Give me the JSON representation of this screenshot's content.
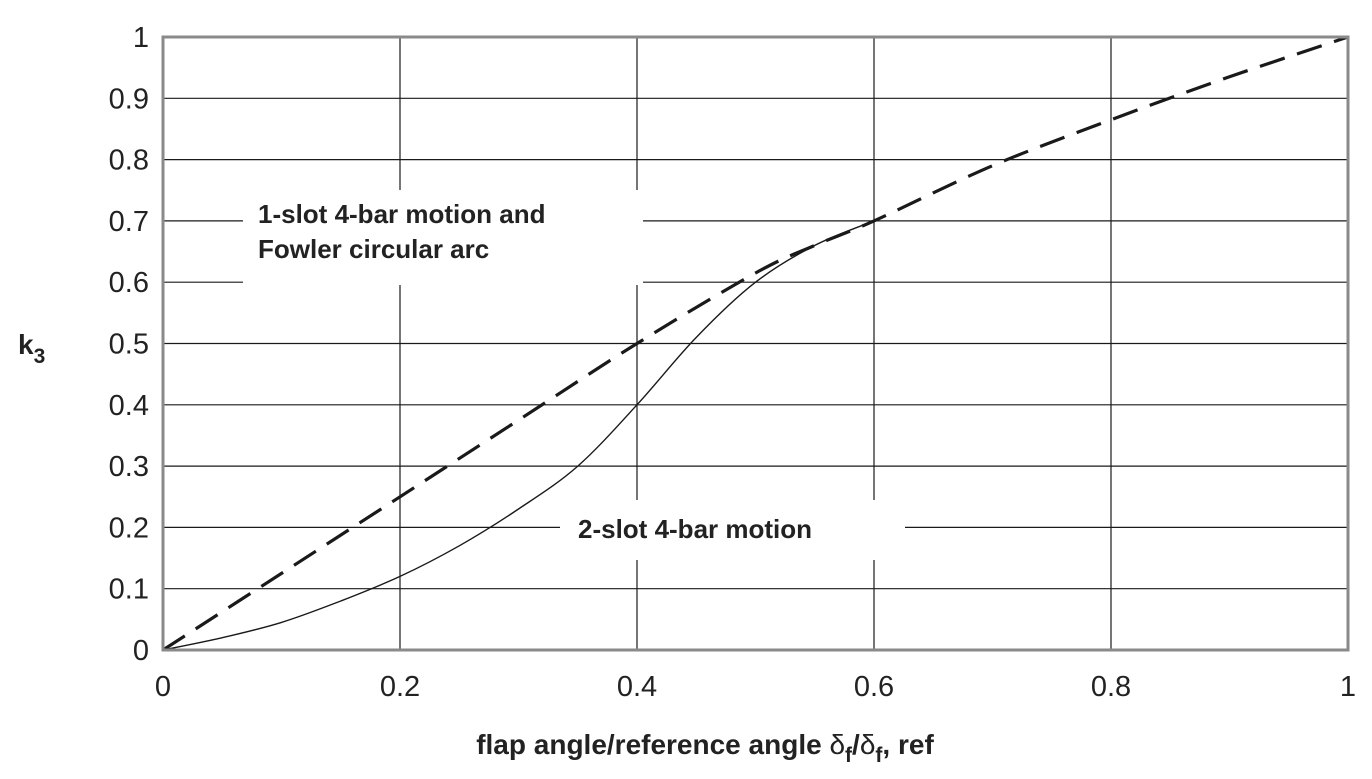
{
  "chart_data": {
    "type": "line",
    "xlabel": "flap angle/reference angle δf/δf, ref",
    "xlabel_parts": {
      "main": "flap angle/reference angle ",
      "sym1": "δ",
      "sub1": "f",
      "slash": "/",
      "sym2": "δ",
      "sub2": "f",
      "tail": ", ref"
    },
    "ylabel": "k3",
    "ylabel_parts": {
      "main": "k",
      "sub": "3"
    },
    "xlim": [
      0,
      1
    ],
    "ylim": [
      0,
      1
    ],
    "x_ticks": [
      "0",
      "0.2",
      "0.4",
      "0.6",
      "0.8",
      "1"
    ],
    "y_ticks": [
      "0",
      "0.1",
      "0.2",
      "0.3",
      "0.4",
      "0.5",
      "0.6",
      "0.7",
      "0.8",
      "0.9",
      "1"
    ],
    "grid": true,
    "series": [
      {
        "name": "1-slot 4-bar motion and Fowler circular arc",
        "style": "dashed",
        "x": [
          0,
          0.1,
          0.2,
          0.3,
          0.4,
          0.5,
          0.55,
          0.6,
          0.7,
          0.8,
          0.9,
          1.0
        ],
        "y": [
          0,
          0.125,
          0.25,
          0.375,
          0.5,
          0.615,
          0.66,
          0.7,
          0.79,
          0.865,
          0.935,
          1.0
        ]
      },
      {
        "name": "2-slot 4-bar motion",
        "style": "solid-thin",
        "x": [
          0,
          0.05,
          0.1,
          0.15,
          0.2,
          0.25,
          0.3,
          0.35,
          0.4,
          0.45,
          0.5,
          0.55,
          0.6
        ],
        "y": [
          0,
          0.02,
          0.045,
          0.08,
          0.12,
          0.17,
          0.23,
          0.3,
          0.4,
          0.51,
          0.6,
          0.66,
          0.7
        ]
      }
    ],
    "annotations": [
      {
        "lines": [
          "1-slot 4-bar motion and",
          "Fowler circular arc"
        ],
        "series": 0
      },
      {
        "lines": [
          "2-slot 4-bar motion"
        ],
        "series": 1
      }
    ]
  }
}
